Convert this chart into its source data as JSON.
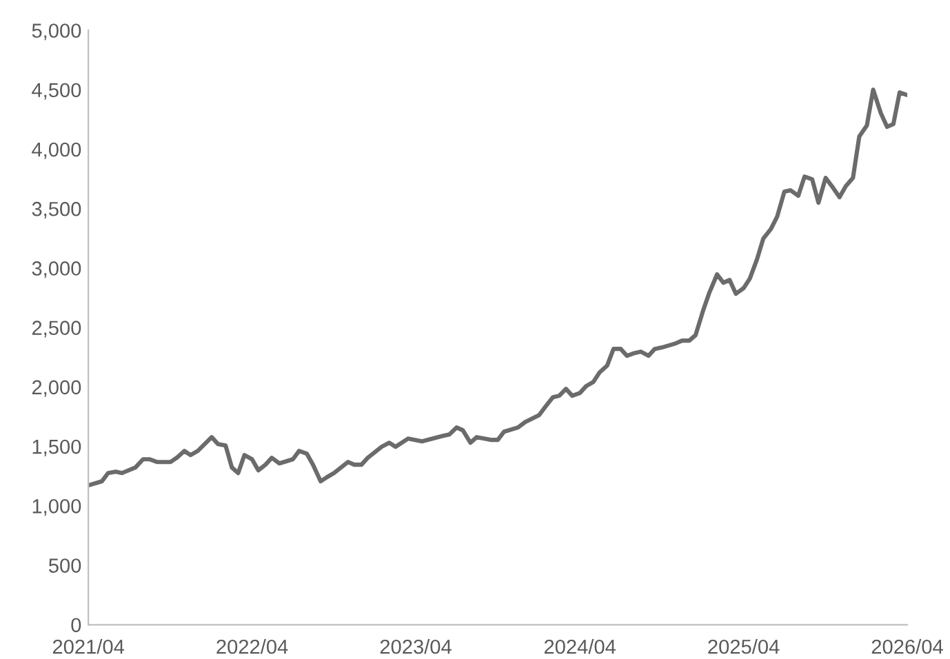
{
  "chart_data": {
    "type": "line",
    "x": [
      "2021-04-01",
      "2021-05-01",
      "2021-05-15",
      "2021-06-01",
      "2021-06-15",
      "2021-07-15",
      "2021-08-01",
      "2021-08-15",
      "2021-09-01",
      "2021-10-01",
      "2021-10-15",
      "2021-11-01",
      "2021-11-15",
      "2021-12-01",
      "2022-01-01",
      "2022-01-15",
      "2022-02-01",
      "2022-02-15",
      "2022-03-01",
      "2022-03-15",
      "2022-04-01",
      "2022-04-15",
      "2022-05-01",
      "2022-05-15",
      "2022-06-01",
      "2022-07-01",
      "2022-07-15",
      "2022-08-01",
      "2022-08-15",
      "2022-09-01",
      "2022-09-15",
      "2022-10-01",
      "2022-11-01",
      "2022-11-15",
      "2022-12-01",
      "2022-12-15",
      "2023-01-15",
      "2023-02-01",
      "2023-02-15",
      "2023-03-15",
      "2023-04-15",
      "2023-06-01",
      "2023-06-15",
      "2023-07-01",
      "2023-07-15",
      "2023-08-01",
      "2023-08-15",
      "2023-09-01",
      "2023-09-15",
      "2023-10-01",
      "2023-10-15",
      "2023-11-15",
      "2023-12-01",
      "2024-01-01",
      "2024-01-15",
      "2024-02-01",
      "2024-02-15",
      "2024-03-01",
      "2024-03-15",
      "2024-04-01",
      "2024-04-15",
      "2024-05-01",
      "2024-05-15",
      "2024-06-01",
      "2024-06-15",
      "2024-07-01",
      "2024-07-15",
      "2024-08-01",
      "2024-08-15",
      "2024-09-01",
      "2024-09-15",
      "2024-10-01",
      "2024-11-01",
      "2024-11-15",
      "2024-12-01",
      "2024-12-15",
      "2025-01-01",
      "2025-01-15",
      "2025-02-01",
      "2025-02-15",
      "2025-03-01",
      "2025-03-15",
      "2025-04-01",
      "2025-04-15",
      "2025-05-01",
      "2025-05-15",
      "2025-06-01",
      "2025-06-15",
      "2025-07-01",
      "2025-07-15",
      "2025-08-01",
      "2025-08-15",
      "2025-09-01",
      "2025-09-15",
      "2025-10-01",
      "2025-10-15",
      "2025-11-01",
      "2025-11-15",
      "2025-12-01",
      "2025-12-15",
      "2026-01-01",
      "2026-01-15",
      "2026-02-01",
      "2026-02-15",
      "2026-03-01",
      "2026-03-15",
      "2026-04-01"
    ],
    "series": [
      {
        "color": "#6b6b6b",
        "values": [
          1172,
          1206,
          1276,
          1288,
          1276,
          1323,
          1392,
          1392,
          1369,
          1369,
          1404,
          1462,
          1427,
          1462,
          1578,
          1520,
          1508,
          1323,
          1276,
          1427,
          1392,
          1299,
          1346,
          1404,
          1357,
          1392,
          1462,
          1439,
          1346,
          1206,
          1241,
          1276,
          1369,
          1346,
          1346,
          1404,
          1497,
          1531,
          1497,
          1566,
          1543,
          1589,
          1601,
          1659,
          1636,
          1531,
          1578,
          1566,
          1555,
          1555,
          1624,
          1659,
          1705,
          1763,
          1833,
          1914,
          1926,
          1984,
          1926,
          1949,
          2007,
          2042,
          2123,
          2181,
          2320,
          2320,
          2262,
          2285,
          2297,
          2262,
          2320,
          2332,
          2367,
          2390,
          2390,
          2436,
          2645,
          2796,
          2947,
          2877,
          2900,
          2784,
          2831,
          2912,
          3074,
          3248,
          3329,
          3434,
          3643,
          3654,
          3608,
          3770,
          3747,
          3550,
          3759,
          3689,
          3596,
          3689,
          3759,
          4107,
          4200,
          4501,
          4304,
          4188,
          4211,
          4478,
          4455
        ]
      }
    ],
    "xlim": [
      "2021-04-01",
      "2026-04-01"
    ],
    "xticks": [
      {
        "value": "2021-04-01",
        "label": "2021/04"
      },
      {
        "value": "2022-04-01",
        "label": "2022/04"
      },
      {
        "value": "2023-04-01",
        "label": "2023/04"
      },
      {
        "value": "2024-04-01",
        "label": "2024/04"
      },
      {
        "value": "2025-04-01",
        "label": "2025/04"
      },
      {
        "value": "2026-04-01",
        "label": "2026/04"
      }
    ],
    "ylim": [
      0,
      5000
    ],
    "yticks": [
      0,
      500,
      {
        "value": 1000,
        "label": "1,000"
      },
      {
        "value": 1500,
        "label": "1,500"
      },
      {
        "value": 2000,
        "label": "2,000"
      },
      {
        "value": 2500,
        "label": "2,500"
      },
      {
        "value": 3000,
        "label": "3,000"
      },
      {
        "value": 3500,
        "label": "3,500"
      },
      {
        "value": 4000,
        "label": "4,000"
      },
      {
        "value": 4500,
        "label": "4,500"
      },
      {
        "value": 5000,
        "label": "5,000"
      }
    ],
    "grid": false,
    "marker": "none",
    "line_style": "solid"
  }
}
